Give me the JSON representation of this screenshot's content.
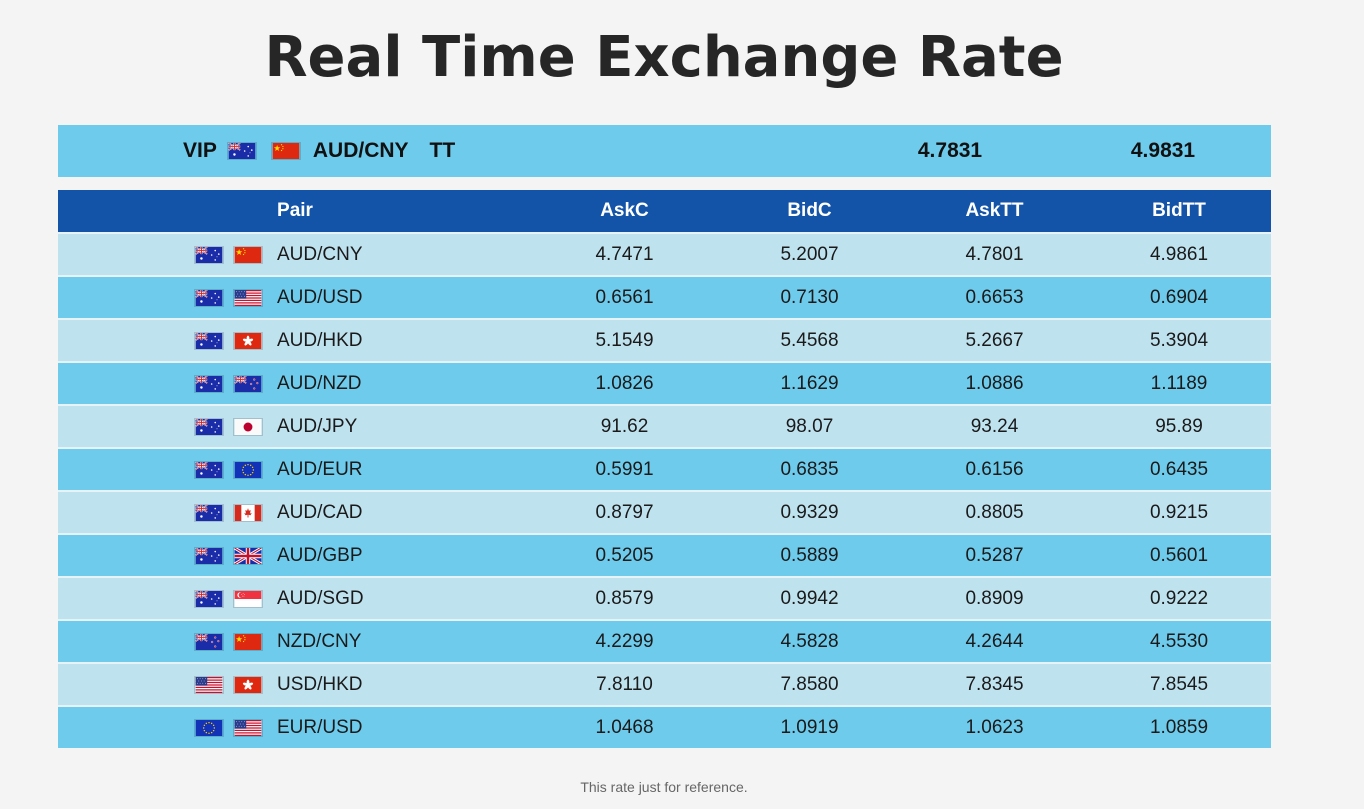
{
  "page": {
    "title": "Real Time Exchange Rate",
    "footnote": "This rate just for reference."
  },
  "vip": {
    "label": "VIP",
    "flags": [
      "au-flag-icon",
      "cn-flag-icon"
    ],
    "pair": "AUD/CNY",
    "type": "TT",
    "ask": "4.7831",
    "bid": "4.9831"
  },
  "table": {
    "headers": [
      "Pair",
      "AskC",
      "BidC",
      "AskTT",
      "BidTT"
    ],
    "rows": [
      {
        "flags": [
          "au",
          "cn"
        ],
        "pair": "AUD/CNY",
        "askc": "4.7471",
        "bidc": "5.2007",
        "asktt": "4.7801",
        "bidtt": "4.9861"
      },
      {
        "flags": [
          "au",
          "us"
        ],
        "pair": "AUD/USD",
        "askc": "0.6561",
        "bidc": "0.7130",
        "asktt": "0.6653",
        "bidtt": "0.6904"
      },
      {
        "flags": [
          "au",
          "hk"
        ],
        "pair": "AUD/HKD",
        "askc": "5.1549",
        "bidc": "5.4568",
        "asktt": "5.2667",
        "bidtt": "5.3904"
      },
      {
        "flags": [
          "au",
          "nz"
        ],
        "pair": "AUD/NZD",
        "askc": "1.0826",
        "bidc": "1.1629",
        "asktt": "1.0886",
        "bidtt": "1.1189"
      },
      {
        "flags": [
          "au",
          "jp"
        ],
        "pair": "AUD/JPY",
        "askc": "91.62",
        "bidc": "98.07",
        "asktt": "93.24",
        "bidtt": "95.89"
      },
      {
        "flags": [
          "au",
          "eu"
        ],
        "pair": "AUD/EUR",
        "askc": "0.5991",
        "bidc": "0.6835",
        "asktt": "0.6156",
        "bidtt": "0.6435"
      },
      {
        "flags": [
          "au",
          "ca"
        ],
        "pair": "AUD/CAD",
        "askc": "0.8797",
        "bidc": "0.9329",
        "asktt": "0.8805",
        "bidtt": "0.9215"
      },
      {
        "flags": [
          "au",
          "gb"
        ],
        "pair": "AUD/GBP",
        "askc": "0.5205",
        "bidc": "0.5889",
        "asktt": "0.5287",
        "bidtt": "0.5601"
      },
      {
        "flags": [
          "au",
          "sg"
        ],
        "pair": "AUD/SGD",
        "askc": "0.8579",
        "bidc": "0.9942",
        "asktt": "0.8909",
        "bidtt": "0.9222"
      },
      {
        "flags": [
          "nz",
          "cn"
        ],
        "pair": "NZD/CNY",
        "askc": "4.2299",
        "bidc": "4.5828",
        "asktt": "4.2644",
        "bidtt": "4.5530"
      },
      {
        "flags": [
          "us",
          "hk"
        ],
        "pair": "USD/HKD",
        "askc": "7.8110",
        "bidc": "7.8580",
        "asktt": "7.8345",
        "bidtt": "7.8545"
      },
      {
        "flags": [
          "eu",
          "us"
        ],
        "pair": "EUR/USD",
        "askc": "1.0468",
        "bidc": "1.0919",
        "asktt": "1.0623",
        "bidtt": "1.0859"
      }
    ]
  },
  "colors": {
    "header_bg": "#1454a8",
    "row_light": "#bfe2ef",
    "row_dark": "#6ecbec",
    "title": "#262626"
  }
}
